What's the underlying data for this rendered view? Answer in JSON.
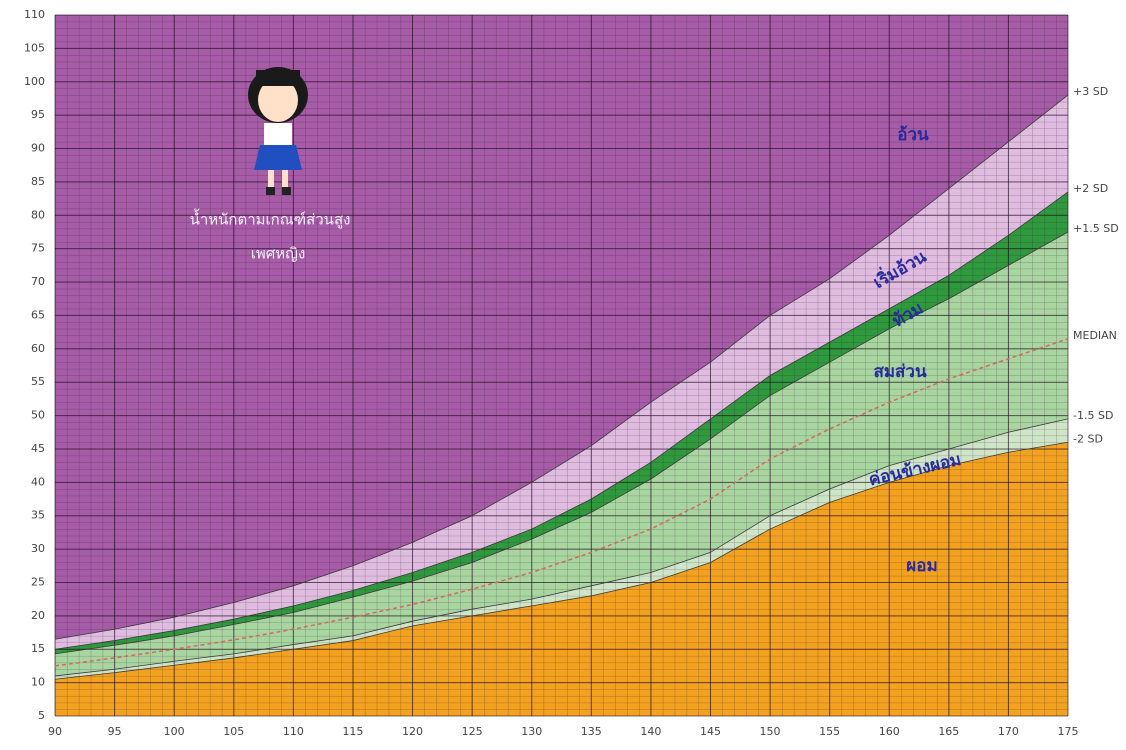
{
  "chart_data": {
    "type": "line",
    "x": [
      90,
      95,
      100,
      105,
      110,
      115,
      120,
      125,
      130,
      135,
      140,
      145,
      150,
      155,
      160,
      165,
      170,
      175
    ],
    "series": [
      {
        "name": "+3 SD",
        "color": "#e0bde0",
        "values": [
          16.5,
          18,
          19.8,
          22,
          24.5,
          27.5,
          31,
          35,
          40,
          45.5,
          52,
          58,
          65,
          70.5,
          77,
          84,
          91,
          98
        ]
      },
      {
        "name": "+2 SD",
        "color": "#2f9a3d",
        "values": [
          15,
          16.3,
          17.8,
          19.5,
          21.5,
          23.8,
          26.5,
          29.5,
          33,
          37.5,
          43,
          49.5,
          56,
          61,
          66,
          71,
          77,
          83.5
        ]
      },
      {
        "name": "+1.5 SD",
        "color": "#a9d5a1",
        "values": [
          14.3,
          15.6,
          17,
          18.7,
          20.5,
          22.8,
          25.2,
          28,
          31.5,
          35.5,
          40.5,
          46.5,
          53,
          58,
          63,
          67.5,
          72.5,
          77.5
        ]
      },
      {
        "name": "MEDIAN",
        "color": "#d46a5a",
        "values": [
          12.5,
          13.7,
          15,
          16.4,
          18,
          19.8,
          21.7,
          24,
          26.5,
          29.5,
          33,
          37.5,
          43.5,
          48,
          52,
          55.5,
          58.5,
          61.5
        ]
      },
      {
        "name": "-1.5 SD",
        "color": "#cfe5c8",
        "values": [
          11,
          12,
          13.2,
          14.3,
          15.7,
          17,
          19.2,
          21,
          22.5,
          24.5,
          26.5,
          29.5,
          35,
          39,
          42.5,
          45,
          47.5,
          49.5
        ]
      },
      {
        "name": "-2 SD",
        "color": "#f2a21e",
        "values": [
          10.5,
          11.5,
          12.6,
          13.7,
          15,
          16.3,
          18.5,
          20,
          21.5,
          23,
          25,
          28,
          33,
          37,
          40,
          42.5,
          44.5,
          46
        ]
      }
    ],
    "background_color": "#a65ca6",
    "xlim": [
      90,
      175
    ],
    "xticks": [
      90,
      95,
      100,
      105,
      110,
      115,
      120,
      125,
      130,
      135,
      140,
      145,
      150,
      155,
      160,
      165,
      170,
      175
    ],
    "ylim": [
      5,
      110
    ],
    "yticks": [
      5,
      10,
      15,
      20,
      25,
      30,
      35,
      40,
      45,
      50,
      55,
      60,
      65,
      70,
      75,
      80,
      85,
      90,
      95,
      100,
      105,
      110
    ],
    "grid": true,
    "annotations": [
      "อ้วน",
      "เริ่มอ้วน",
      "ท้วม",
      "สมส่วน",
      "ค่อนข้างผอม",
      "ผอม",
      "น้ำหนักตามเกณฑ์ส่วนสูง",
      "เพศหญิง"
    ]
  }
}
